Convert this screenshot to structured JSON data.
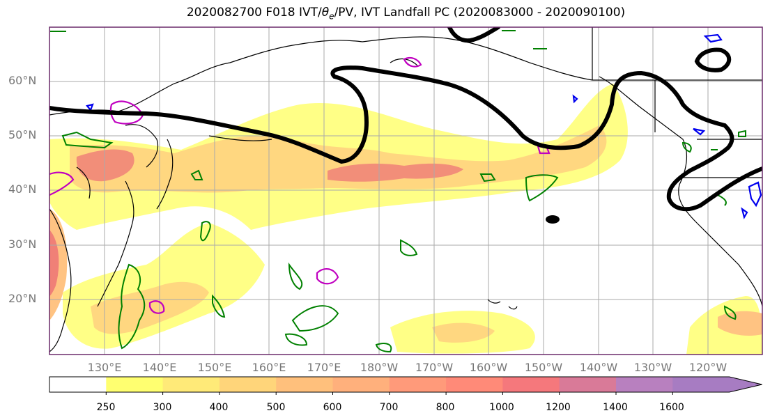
{
  "title": "2020082700 F018 IVT/θe/PV, IVT Landfall PC (2020083000 - 2020090100)",
  "title_parts": {
    "prefix": "2020082700 F018 IVT/",
    "theta": "θ",
    "sub": "e",
    "suffix": "/PV, IVT Landfall PC (2020083000 - 2020090100)"
  },
  "lat_labels": [
    "60°N",
    "50°N",
    "40°N",
    "30°N",
    "20°N"
  ],
  "lon_labels": [
    "130°E",
    "140°E",
    "150°E",
    "160°E",
    "170°E",
    "180°W",
    "170°W",
    "160°W",
    "150°W",
    "140°W",
    "130°W",
    "120°W"
  ],
  "colorbar": {
    "ticks": [
      "250",
      "300",
      "400",
      "500",
      "600",
      "700",
      "800",
      "1000",
      "1200",
      "1400",
      "1600"
    ],
    "colors": [
      "#ffff70",
      "#ffea78",
      "#ffd57a",
      "#ffc07c",
      "#ffb07c",
      "#ff9a7a",
      "#ff8a78",
      "#f5787c",
      "#d97a98",
      "#b880bf",
      "#a77cc2"
    ]
  },
  "colors": {
    "ivt_low": "#ffff80",
    "ivt_mid": "#ffc07c",
    "ivt_high": "#f07070",
    "pc_contour": "#000000",
    "green_contour": "#008000",
    "magenta_contour": "#c000c0",
    "blue_contour": "#0000ee",
    "coast": "#000000",
    "grid": "#aaaaaa"
  }
}
